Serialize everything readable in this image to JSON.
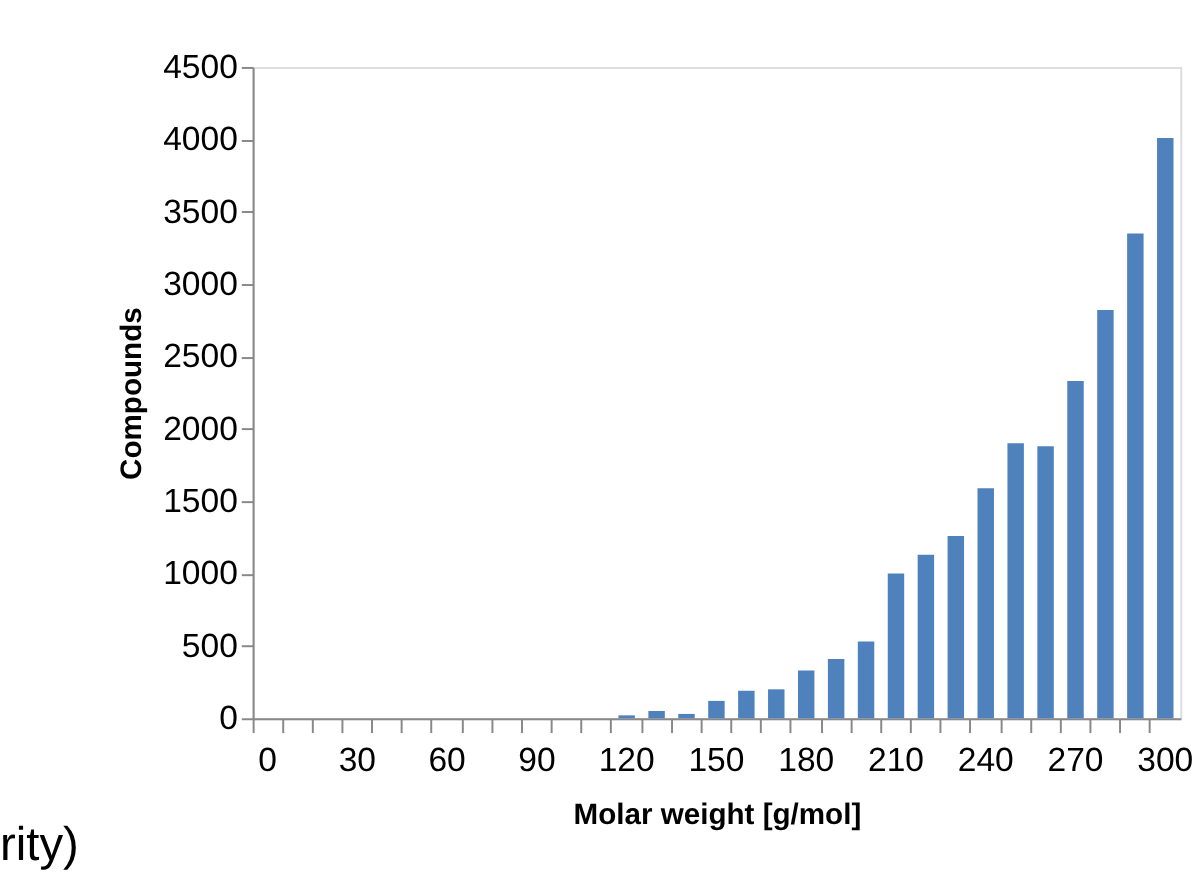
{
  "chart_data": {
    "type": "bar",
    "categories": [
      "0",
      null,
      null,
      "30",
      null,
      null,
      "60",
      null,
      null,
      "90",
      null,
      null,
      "120",
      null,
      null,
      "150",
      null,
      null,
      "180",
      null,
      null,
      "210",
      null,
      null,
      "240",
      null,
      null,
      "270",
      null,
      null,
      "300"
    ],
    "values": [
      0,
      0,
      0,
      0,
      0,
      0,
      0,
      0,
      0,
      0,
      0,
      0,
      20,
      50,
      30,
      120,
      190,
      200,
      330,
      410,
      530,
      1000,
      1130,
      1260,
      1590,
      1900,
      1880,
      2330,
      2820,
      3350,
      4010
    ],
    "color": "#4f81bd",
    "xlabel": "Molar weight [g/mol]",
    "ylabel": "Compounds",
    "ylim": [
      0,
      4500
    ],
    "yticks": [
      0,
      500,
      1000,
      1500,
      2000,
      2500,
      3000,
      3500,
      4000,
      4500
    ],
    "grid": false,
    "annotations": [
      "rity)"
    ]
  }
}
